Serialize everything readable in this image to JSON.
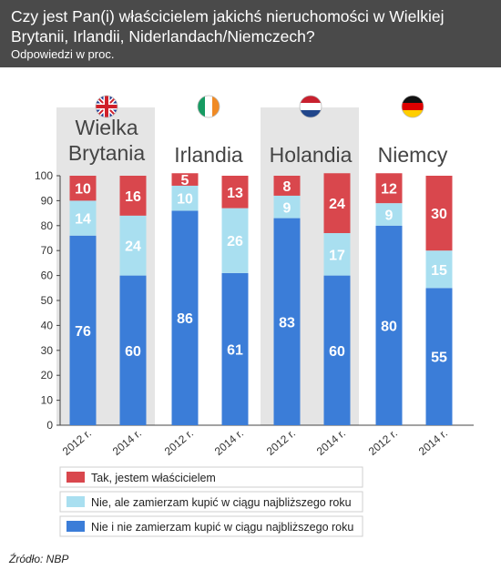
{
  "header": {
    "title": "Czy jest Pan(i) właścicielem jakichś nieruchomości w Wielkiej Brytanii, Irlandii, Niderlandach/Niemczech?",
    "subtitle": "Odpowiedzi w proc."
  },
  "source": "Źródło: NBP",
  "colors": {
    "header_bg": "#4a4a4a",
    "blue": "#3b7dd8",
    "light_blue": "#a9dff0",
    "red": "#d9474d",
    "panel": "#e5e5e5"
  },
  "chart_data": {
    "type": "bar",
    "stacked": true,
    "ylim": [
      0,
      100
    ],
    "yticks": [
      0,
      10,
      20,
      30,
      40,
      50,
      60,
      70,
      80,
      90,
      100
    ],
    "groups": [
      {
        "country": "Wielka Brytania",
        "label_lines": [
          "Wielka",
          "Brytania"
        ],
        "flag": "uk-flag-icon",
        "shaded": true
      },
      {
        "country": "Irlandia",
        "label_lines": [
          "Irlandia"
        ],
        "flag": "ireland-flag-icon",
        "shaded": false
      },
      {
        "country": "Holandia",
        "label_lines": [
          "Holandia"
        ],
        "flag": "netherlands-flag-icon",
        "shaded": true
      },
      {
        "country": "Niemcy",
        "label_lines": [
          "Niemcy"
        ],
        "flag": "germany-flag-icon",
        "shaded": false
      }
    ],
    "categories": [
      "2012 r.",
      "2014 r.",
      "2012 r.",
      "2014 r.",
      "2012 r.",
      "2014 r.",
      "2012 r.",
      "2014 r."
    ],
    "series": [
      {
        "name": "Nie i nie zamierzam kupić w ciągu najbliższego roku",
        "color": "#3b7dd8",
        "values": [
          76,
          60,
          86,
          61,
          83,
          60,
          80,
          55
        ]
      },
      {
        "name": "Nie, ale zamierzam kupić w ciągu najbliższego roku",
        "color": "#a9dff0",
        "values": [
          14,
          24,
          10,
          26,
          9,
          17,
          9,
          15
        ]
      },
      {
        "name": "Tak, jestem właścicielem",
        "color": "#d9474d",
        "values": [
          10,
          16,
          5,
          13,
          8,
          24,
          12,
          30
        ]
      }
    ],
    "legend_order": [
      2,
      1,
      0
    ],
    "legend_position": "bottom"
  }
}
